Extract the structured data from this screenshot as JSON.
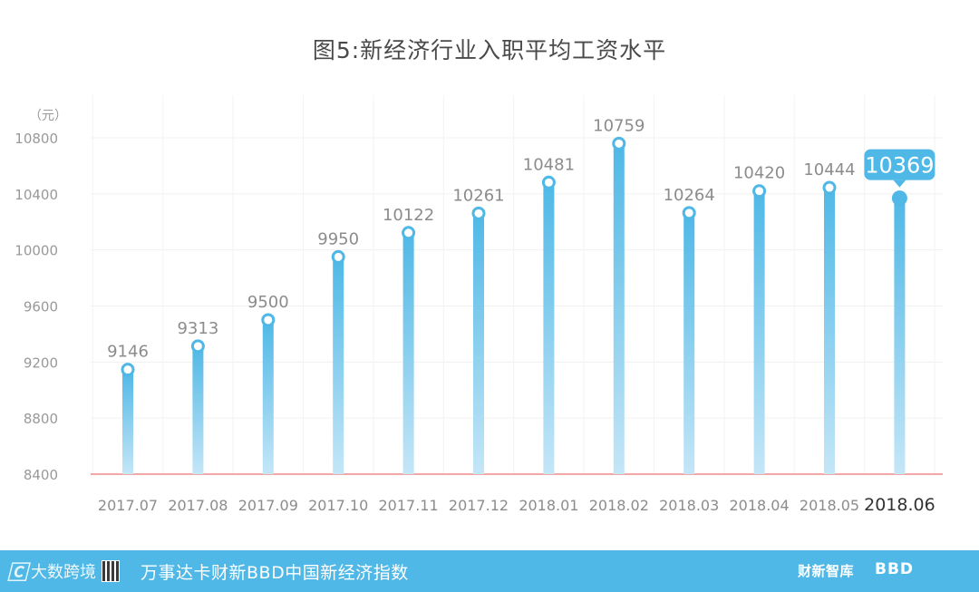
{
  "chart_data": {
    "type": "bar",
    "title": "图5:新经济行业入职平均工资水平",
    "unit_label": "（元）",
    "categories": [
      "2017.07",
      "2017.08",
      "2017.09",
      "2017.10",
      "2017.11",
      "2017.12",
      "2018.01",
      "2018.02",
      "2018.03",
      "2018.04",
      "2018.05",
      "2018.06"
    ],
    "values": [
      9146,
      9313,
      9500,
      9950,
      10122,
      10261,
      10481,
      10759,
      10264,
      10420,
      10444,
      10369
    ],
    "ylim": [
      8400,
      10800
    ],
    "yticks": [
      8400,
      8800,
      9200,
      9600,
      10000,
      10400,
      10800
    ],
    "highlight_index": 11,
    "grid": true,
    "colors": {
      "bar_top": "#4fb8e6",
      "bar_bottom": "#c4e6f7",
      "baseline": "#f08a8a",
      "callout": "#4fb8e6"
    }
  },
  "footer": {
    "logo_text": "大数跨境",
    "source": "万事达卡财新BBD中国新经济指数",
    "brand_caixin": "财新智库",
    "brand_bbd": "BBD"
  }
}
